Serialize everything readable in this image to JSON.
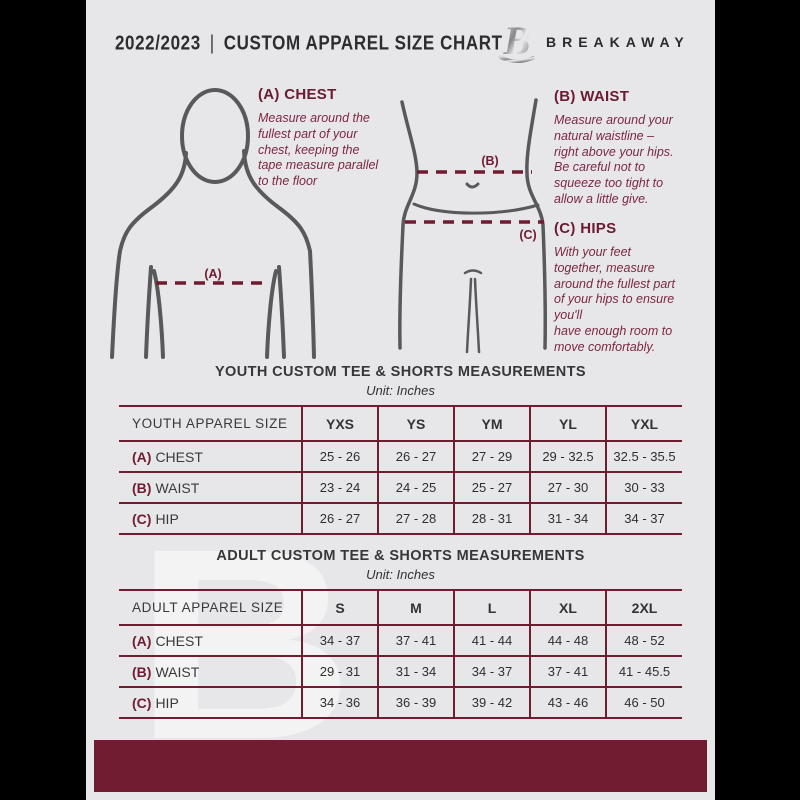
{
  "header": {
    "season": "2022/2023",
    "divider": "|",
    "title": "CUSTOM APPAREL SIZE CHART",
    "brand": "BREAKAWAY",
    "logo_letter": "B"
  },
  "guide": {
    "chest": {
      "heading": "(A) CHEST",
      "marker": "(A)",
      "body": "Measure around the\nfullest part of your\nchest, keeping the\ntape measure parallel\nto the floor"
    },
    "waist": {
      "heading": "(B) WAIST",
      "marker": "(B)",
      "body": "Measure around your\nnatural waistline –\nright above your hips.\nBe careful not to\nsqueeze too tight to\nallow a little give."
    },
    "hips": {
      "heading": "(C) HIPS",
      "marker": "(C)",
      "body": "With your feet\ntogether, measure\naround the fullest part\nof your hips to ensure\nyou'll\nhave enough room to\nmove comfortably."
    }
  },
  "tables": [
    {
      "title": "YOUTH CUSTOM TEE & SHORTS MEASUREMENTS",
      "unit": "Unit: Inches",
      "size_label": "YOUTH APPAREL SIZE",
      "columns": [
        "YXS",
        "YS",
        "YM",
        "YL",
        "YXL"
      ],
      "rows": [
        {
          "marker": "(A)",
          "label": "CHEST",
          "values": [
            "25 - 26",
            "26 - 27",
            "27 - 29",
            "29 - 32.5",
            "32.5 - 35.5"
          ]
        },
        {
          "marker": "(B)",
          "label": "WAIST",
          "values": [
            "23 - 24",
            "24 - 25",
            "25 - 27",
            "27 - 30",
            "30 - 33"
          ]
        },
        {
          "marker": "(C)",
          "label": "HIP",
          "values": [
            "26 - 27",
            "27 - 28",
            "28 - 31",
            "31 - 34",
            "34 - 37"
          ]
        }
      ]
    },
    {
      "title": "ADULT CUSTOM TEE & SHORTS MEASUREMENTS",
      "unit": "Unit: Inches",
      "size_label": "ADULT APPAREL SIZE",
      "columns": [
        "S",
        "M",
        "L",
        "XL",
        "2XL"
      ],
      "rows": [
        {
          "marker": "(A)",
          "label": "CHEST",
          "values": [
            "34 - 37",
            "37 - 41",
            "41 - 44",
            "44 - 48",
            "48 - 52"
          ]
        },
        {
          "marker": "(B)",
          "label": "WAIST",
          "values": [
            "29 - 31",
            "31 - 34",
            "34 - 37",
            "37 - 41",
            "41 - 45.5"
          ]
        },
        {
          "marker": "(C)",
          "label": "HIP",
          "values": [
            "34 - 36",
            "36 - 39",
            "39 - 42",
            "43 - 46",
            "46 - 50"
          ]
        }
      ]
    }
  ],
  "watermark": {
    "letter": "B"
  },
  "colors": {
    "accent_maroon": "#701C31",
    "page_background": "#E7E7E9",
    "ink": "#2F2F31",
    "figure_stroke": "#58595B"
  }
}
